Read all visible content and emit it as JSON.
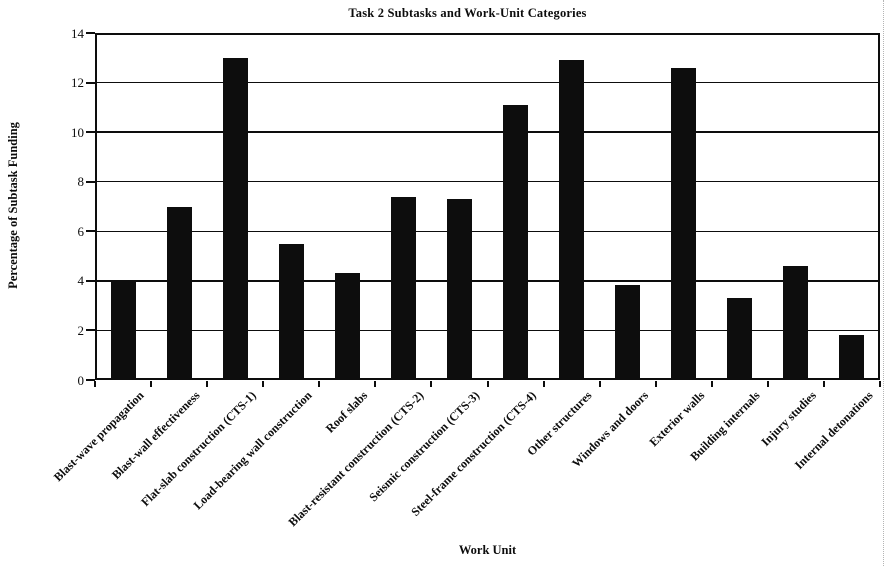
{
  "page": {
    "background": "#ffffff",
    "ink_color": "#0d0d0d"
  },
  "chart_data": {
    "type": "bar",
    "title": "Task 2 Subtasks and Work-Unit Categories",
    "xlabel": "Work Unit",
    "ylabel": "Percentage of Subtask Funding",
    "categories": [
      "Blast-wave propagation",
      "Blast-wall effectiveness",
      "Flat-slab construction (CTS-1)",
      "Load-bearing wall construction",
      "Roof slabs",
      "Blast-resistant construction (CTS-2)",
      "Seismic construction (CTS-3)",
      "Steel-frame construction (CTS-4)",
      "Other structures",
      "Windows and doors",
      "Exterior walls",
      "Building internals",
      "Injury studies",
      "Internal detonations"
    ],
    "values": [
      3.95,
      7.0,
      13.0,
      5.5,
      4.3,
      7.4,
      7.3,
      11.1,
      12.9,
      3.85,
      12.6,
      3.3,
      4.6,
      1.8
    ],
    "ylim": [
      0,
      14
    ],
    "yticks": [
      0,
      2,
      4,
      6,
      8,
      10,
      12,
      14
    ],
    "grid": "horizontal",
    "legend": "none",
    "bar_color": "#0d0d0d"
  }
}
